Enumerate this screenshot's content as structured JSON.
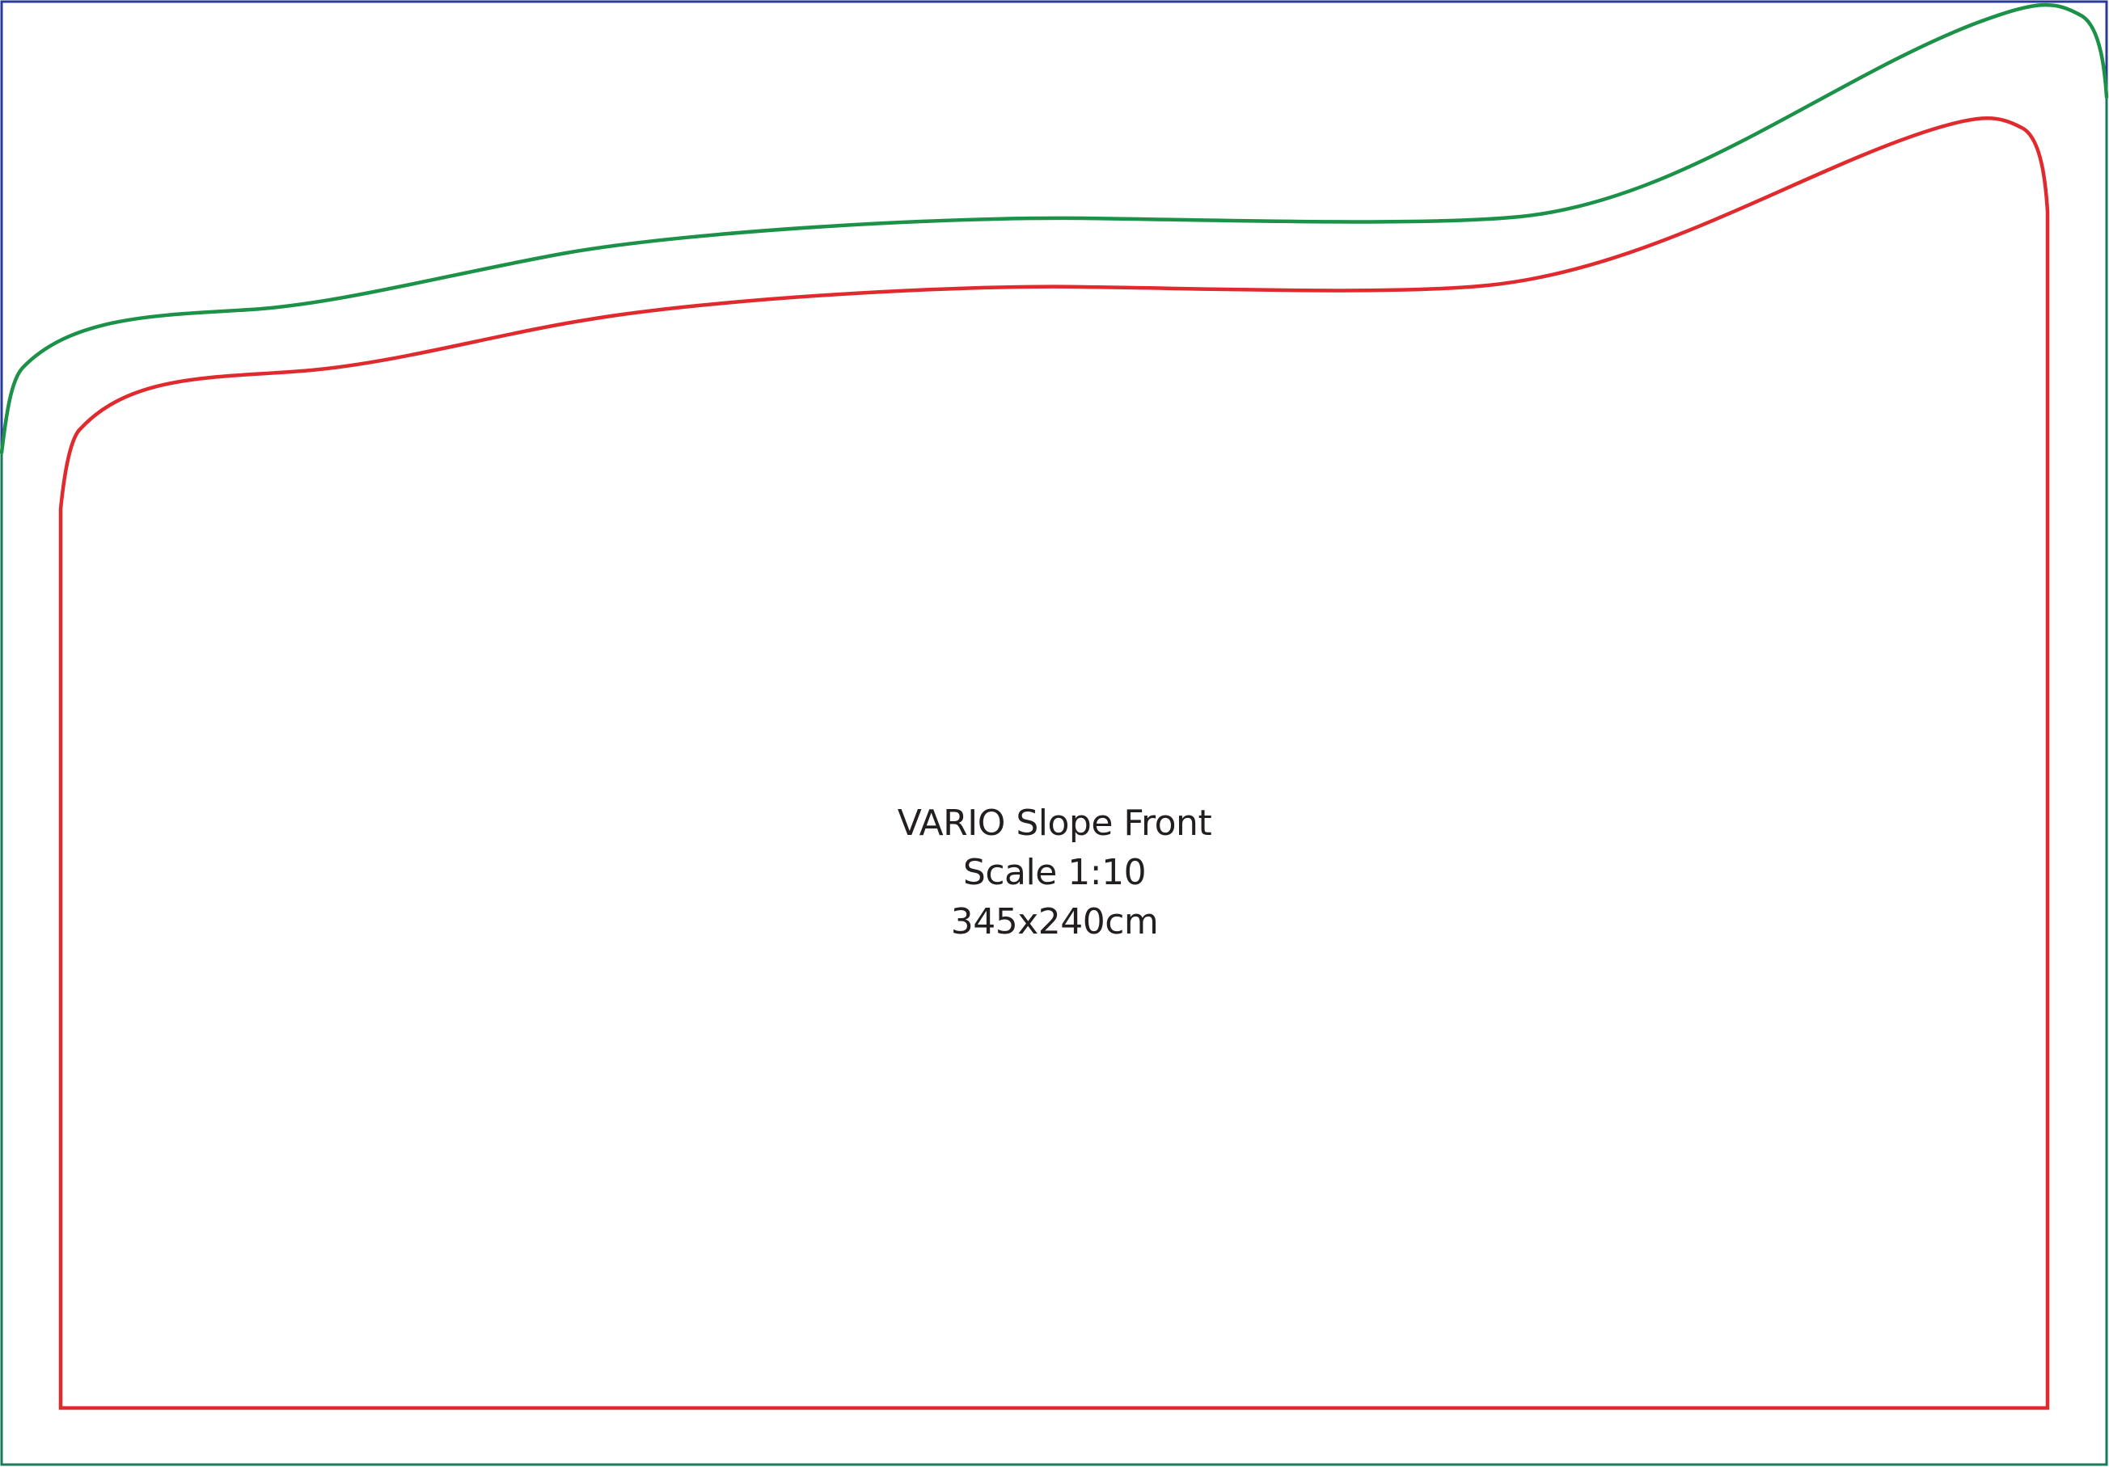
{
  "diagram": {
    "label": {
      "line1": "VARIO Slope Front",
      "line2": "Scale 1:10",
      "line3": "345x240cm"
    },
    "colors": {
      "background": "#ffffff",
      "outer_frame": "#2a3b97",
      "outer_frame_lower": "#1a7a5a",
      "bleed_line": "#1b9248",
      "cut_line": "#e02a2e",
      "text": "#231f20"
    }
  }
}
